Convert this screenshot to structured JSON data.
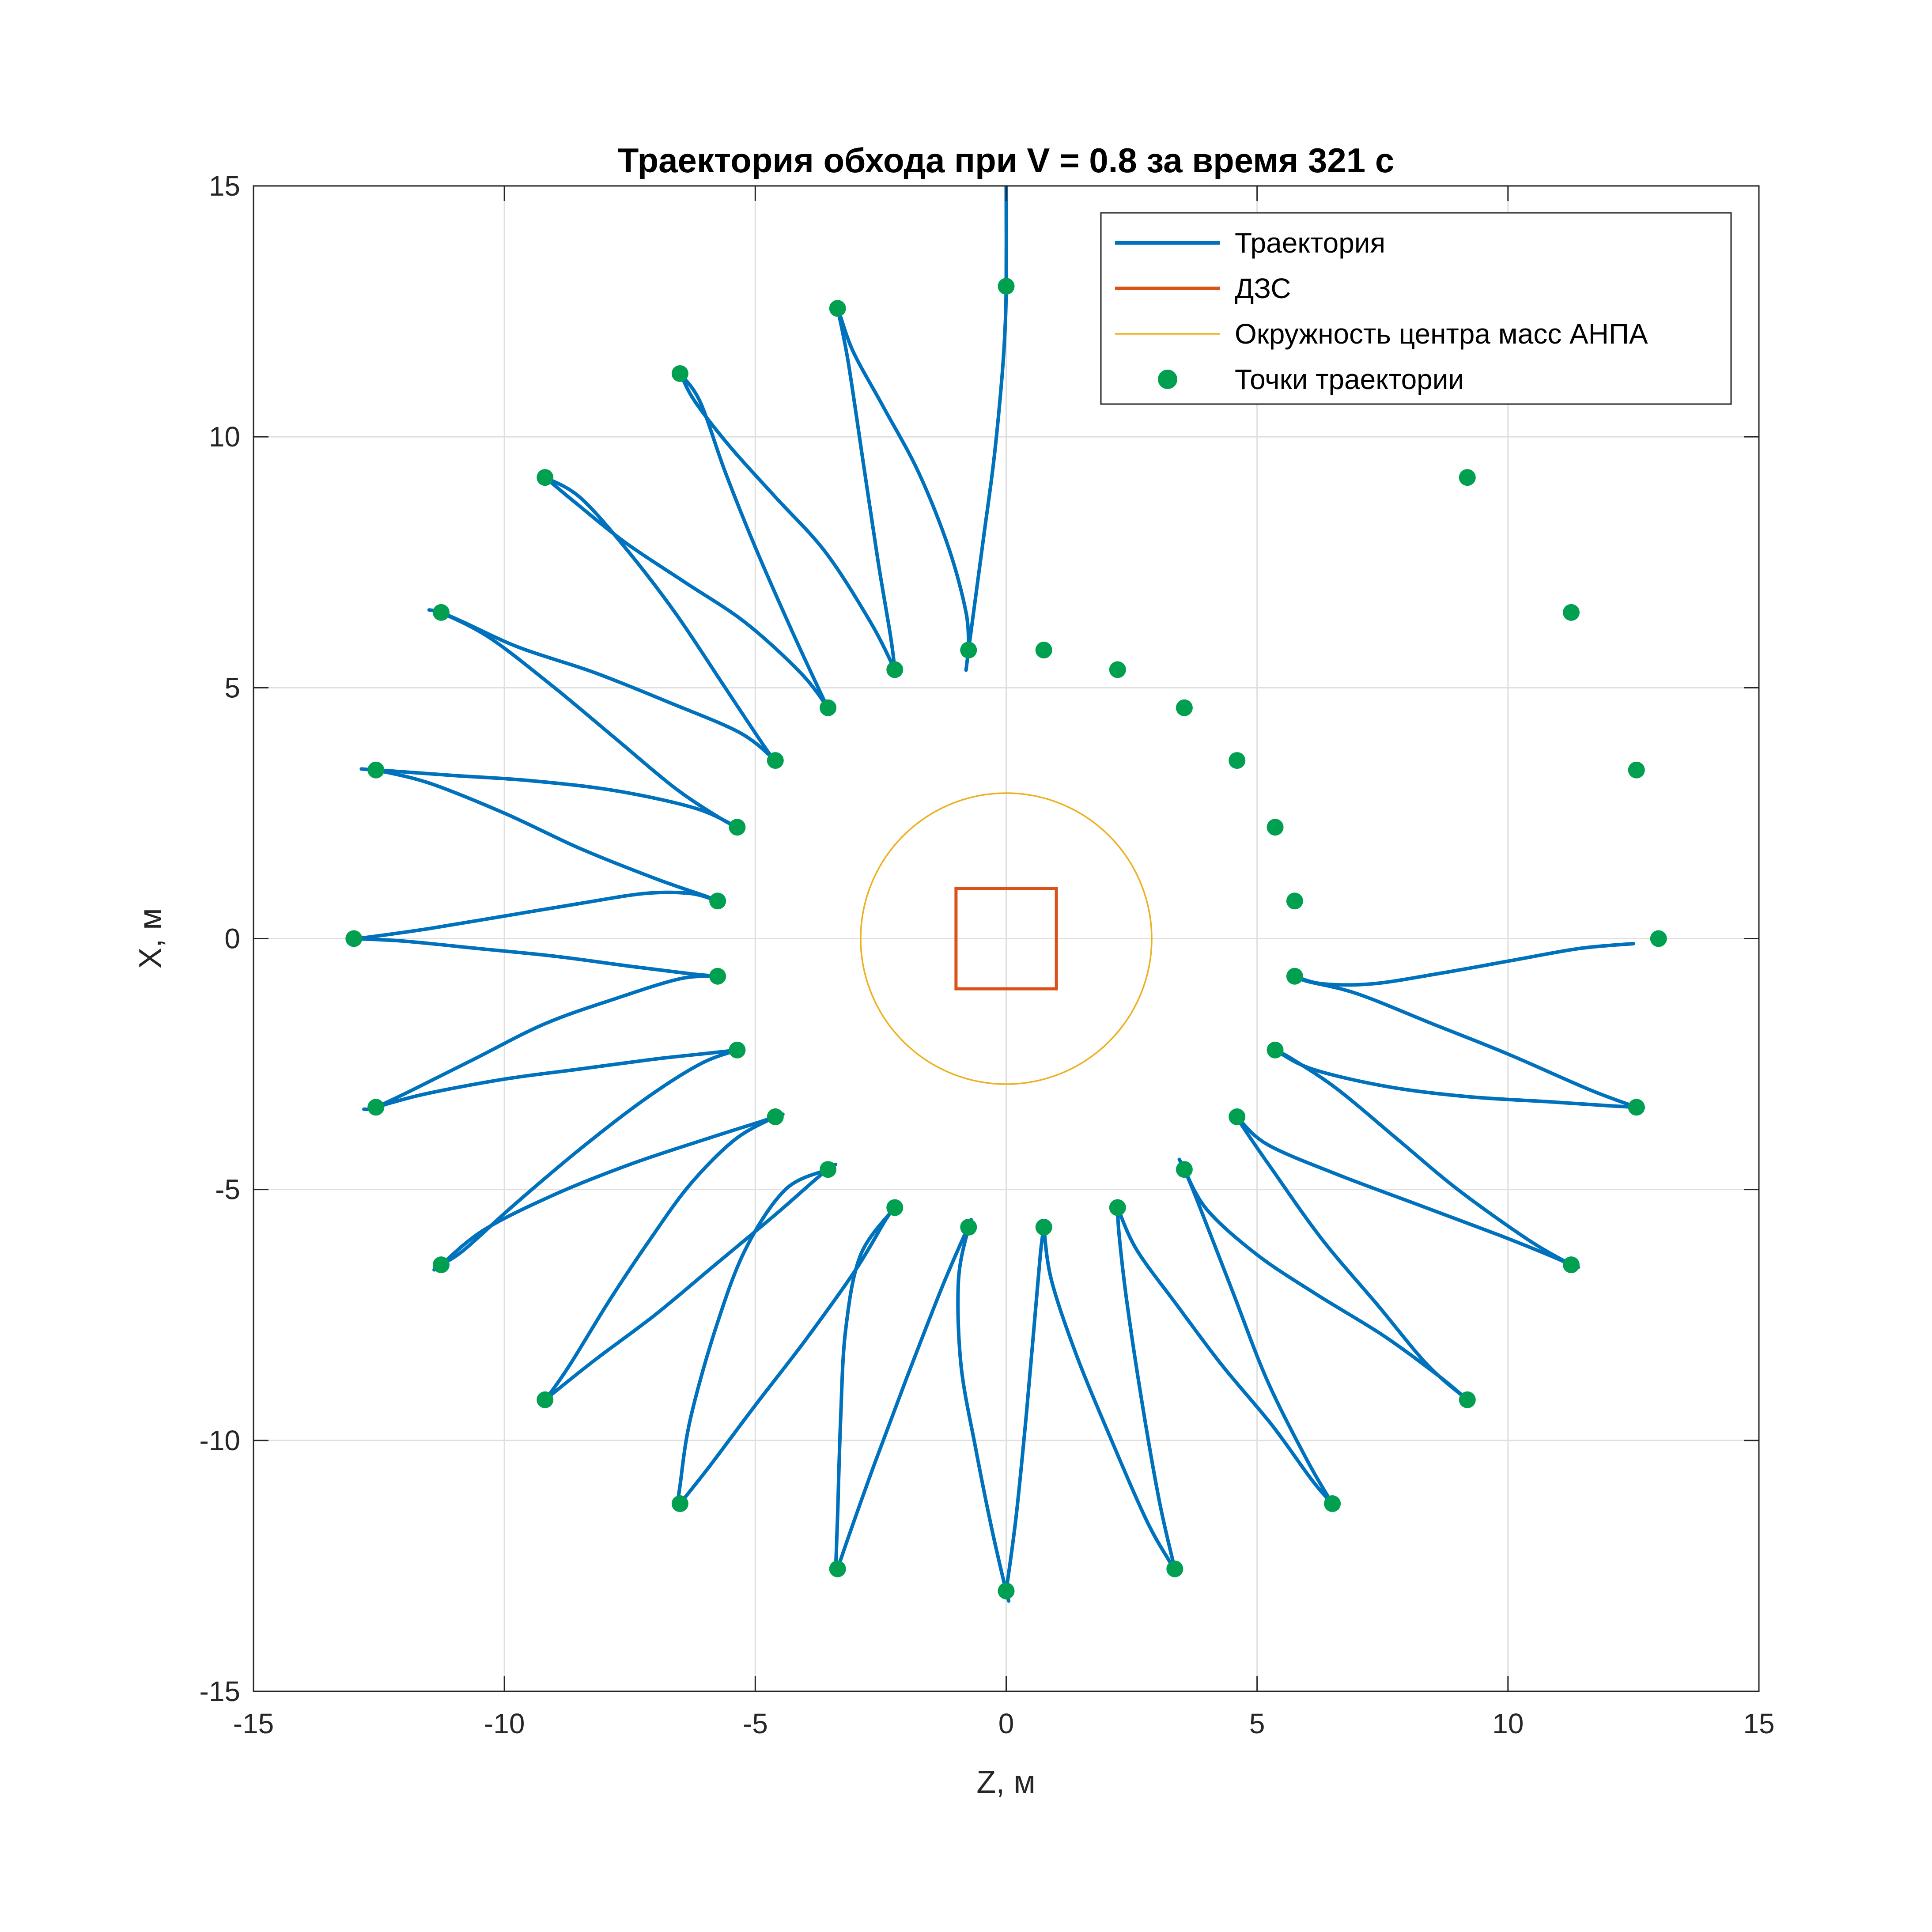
{
  "chart_data": {
    "type": "line",
    "title": "Траектория обхода при V = 0.8 за время 321 с",
    "xlabel": "Z, м",
    "ylabel": "X, м",
    "xlim": [
      -15,
      15
    ],
    "ylim": [
      -15,
      15
    ],
    "xticks": [
      -15,
      -10,
      -5,
      0,
      5,
      10,
      15
    ],
    "yticks": [
      -15,
      -10,
      -5,
      0,
      5,
      10,
      15
    ],
    "grid": true,
    "legend_position": "top-right",
    "legend": [
      {
        "label": "Траектория",
        "kind": "line",
        "color": "#0072BD"
      },
      {
        "label": "ДЗС",
        "kind": "line",
        "color": "#D95319"
      },
      {
        "label": "Окружность центра масс АНПА",
        "kind": "thin-line",
        "color": "#EDB120"
      },
      {
        "label": "Точки траектории",
        "kind": "marker",
        "color": "#00A050"
      }
    ],
    "circle": {
      "center": [
        0,
        0
      ],
      "radius": 2.9,
      "color": "#EDB120"
    },
    "square": {
      "zmin": -1,
      "zmax": 1,
      "xmin": -1,
      "xmax": 1,
      "color": "#D95319"
    },
    "points": {
      "color": "#00A050",
      "z": [
        0,
        -3.36,
        -6.5,
        -9.19,
        -11.26,
        -12.56,
        -13,
        -12.56,
        -11.26,
        -9.19,
        -6.5,
        -3.36,
        0,
        3.36,
        6.5,
        9.19,
        11.26,
        12.56,
        13,
        12.56,
        11.26,
        9.19,
        -0.75,
        -2.22,
        -3.55,
        -4.6,
        -5.36,
        -5.75,
        -5.75,
        -5.36,
        -4.6,
        -3.55,
        -2.22,
        -0.75,
        0.75,
        2.22,
        3.55,
        4.6,
        5.36,
        5.75,
        5.75,
        5.36,
        4.6,
        3.55,
        2.22,
        0.75
      ],
      "x": [
        13,
        12.56,
        11.26,
        9.19,
        6.5,
        3.36,
        0,
        -3.36,
        -6.5,
        -9.19,
        -11.26,
        -12.56,
        -13,
        -12.56,
        -11.26,
        -9.19,
        -6.5,
        -3.36,
        0,
        3.36,
        6.5,
        9.19,
        5.75,
        5.36,
        4.6,
        3.55,
        2.22,
        0.75,
        -0.75,
        -2.22,
        -3.55,
        -4.6,
        -5.36,
        -5.75,
        -5.75,
        -5.36,
        -4.6,
        -3.55,
        -2.22,
        -0.75,
        0.75,
        2.22,
        3.55,
        4.6,
        5.36,
        5.75
      ]
    },
    "series": [
      {
        "z": [
          0,
          0,
          -0.03,
          -0.1,
          -0.25,
          -0.45,
          -0.65,
          -0.75,
          -0.8
        ],
        "x": [
          15,
          13,
          12,
          11,
          9.5,
          8,
          6.5,
          5.75,
          5.35
        ],
        "color": "#0072BD"
      },
      {
        "z": [
          -0.75,
          -0.8,
          -1.15,
          -1.75,
          -2.45,
          -3.05,
          -3.36,
          -3.45
        ],
        "x": [
          5.75,
          6.5,
          7.8,
          9.3,
          10.6,
          11.7,
          12.56,
          12.6
        ]
      },
      {
        "z": [
          -3.36,
          -3.15,
          -2.85,
          -2.55,
          -2.3,
          -2.22
        ],
        "x": [
          12.56,
          11.5,
          9.5,
          7.5,
          6,
          5.36
        ]
      },
      {
        "z": [
          -2.22,
          -2.7,
          -3.6,
          -4.6,
          -5.5,
          -6.2,
          -6.5,
          -6.6
        ],
        "x": [
          5.36,
          6.3,
          7.7,
          8.8,
          9.8,
          10.7,
          11.26,
          11.35
        ]
      },
      {
        "z": [
          -6.5,
          -6.1,
          -5.6,
          -5.0,
          -4.3,
          -3.7,
          -3.55
        ],
        "x": [
          11.26,
          10.7,
          9.3,
          7.8,
          6.2,
          4.9,
          4.6
        ]
      },
      {
        "z": [
          -3.55,
          -4.1,
          -5.2,
          -6.4,
          -7.6,
          -8.6,
          -9.19,
          -9.25
        ],
        "x": [
          4.6,
          5.3,
          6.3,
          7.1,
          7.9,
          8.7,
          9.19,
          9.2
        ]
      },
      {
        "z": [
          -9.19,
          -8.5,
          -7.6,
          -6.6,
          -5.6,
          -4.8,
          -4.6
        ],
        "x": [
          9.19,
          8.8,
          7.8,
          6.5,
          5.0,
          3.8,
          3.55
        ]
      },
      {
        "z": [
          -4.6,
          -5.3,
          -6.7,
          -8.2,
          -9.7,
          -10.8,
          -11.26,
          -11.5
        ],
        "x": [
          3.55,
          4.1,
          4.7,
          5.3,
          5.8,
          6.3,
          6.5,
          6.55
        ]
      },
      {
        "z": [
          -11.26,
          -10.3,
          -9.0,
          -7.8,
          -6.6,
          -5.7,
          -5.36
        ],
        "x": [
          6.5,
          6.0,
          5.0,
          4.0,
          3.0,
          2.4,
          2.22
        ]
      },
      {
        "z": [
          -5.36,
          -6.2,
          -7.8,
          -9.5,
          -11.0,
          -12.1,
          -12.56,
          -12.85
        ],
        "x": [
          2.22,
          2.6,
          2.95,
          3.15,
          3.25,
          3.33,
          3.36,
          3.38
        ]
      },
      {
        "z": [
          -12.56,
          -11.5,
          -10.0,
          -8.5,
          -7.0,
          -6.0,
          -5.75
        ],
        "x": [
          3.36,
          3.1,
          2.5,
          1.8,
          1.2,
          0.85,
          0.75
        ]
      },
      {
        "z": [
          -5.75,
          -6.3,
          -7.2,
          -8.5,
          -10.0,
          -11.5,
          -12.7,
          -13.0
        ],
        "x": [
          0.75,
          0.9,
          0.9,
          0.7,
          0.45,
          0.2,
          0.03,
          0
        ]
      },
      {
        "z": [
          -13,
          -12.0,
          -10.5,
          -9.0,
          -7.5,
          -6.3,
          -5.75
        ],
        "x": [
          0,
          -0.05,
          -0.2,
          -0.35,
          -0.55,
          -0.7,
          -0.75
        ]
      },
      {
        "z": [
          -5.75,
          -6.5,
          -7.8,
          -9.2,
          -10.6,
          -11.8,
          -12.56,
          -12.8
        ],
        "x": [
          -0.75,
          -0.8,
          -1.2,
          -1.7,
          -2.4,
          -3.0,
          -3.36,
          -3.4
        ]
      },
      {
        "z": [
          -12.56,
          -11.6,
          -10.0,
          -8.5,
          -7.0,
          -5.8,
          -5.36
        ],
        "x": [
          -3.36,
          -3.1,
          -2.8,
          -2.6,
          -2.4,
          -2.27,
          -2.22
        ]
      },
      {
        "z": [
          -5.36,
          -6.1,
          -7.2,
          -8.5,
          -9.8,
          -10.8,
          -11.26,
          -11.4
        ],
        "x": [
          -2.22,
          -2.5,
          -3.2,
          -4.2,
          -5.3,
          -6.2,
          -6.5,
          -6.6
        ]
      },
      {
        "z": [
          -11.26,
          -10.4,
          -9.0,
          -7.5,
          -6.0,
          -4.9,
          -4.6,
          -4.45
        ],
        "x": [
          -6.5,
          -5.8,
          -5.1,
          -4.5,
          -4.0,
          -3.65,
          -3.55,
          -3.5
        ]
      },
      {
        "z": [
          -4.6,
          -5.4,
          -6.3,
          -7.1,
          -7.9,
          -8.7,
          -9.19,
          -9.3
        ],
        "x": [
          -3.55,
          -4.0,
          -4.9,
          -6.0,
          -7.2,
          -8.5,
          -9.19,
          -9.25
        ]
      },
      {
        "z": [
          -9.19,
          -8.2,
          -7.0,
          -5.8,
          -4.6,
          -3.8,
          -3.55,
          -3.4
        ],
        "x": [
          -9.19,
          -8.4,
          -7.5,
          -6.5,
          -5.5,
          -4.8,
          -4.6,
          -4.5
        ]
      },
      {
        "z": [
          -3.55,
          -4.4,
          -5.2,
          -5.8,
          -6.3,
          -6.5,
          -6.55
        ],
        "x": [
          -4.6,
          -5.0,
          -6.2,
          -7.8,
          -9.6,
          -10.9,
          -11.3
        ]
      },
      {
        "z": [
          -6.5,
          -5.9,
          -5.0,
          -4.0,
          -3.0,
          -2.4,
          -2.22,
          -2.15
        ],
        "x": [
          -11.26,
          -10.5,
          -9.3,
          -8.0,
          -6.6,
          -5.6,
          -5.36,
          -5.3
        ]
      },
      {
        "z": [
          -2.22,
          -2.9,
          -3.2,
          -3.3,
          -3.36,
          -3.4
        ],
        "x": [
          -5.36,
          -6.3,
          -7.8,
          -9.6,
          -11.5,
          -12.65
        ]
      },
      {
        "z": [
          -3.36,
          -3.1,
          -2.6,
          -2.0,
          -1.3,
          -0.85,
          -0.75,
          -0.7
        ],
        "x": [
          -12.56,
          -11.8,
          -10.4,
          -8.8,
          -7.0,
          -5.95,
          -5.75,
          -5.6
        ]
      },
      {
        "z": [
          -0.75,
          -0.95,
          -0.9,
          -0.6,
          -0.3,
          -0.05,
          0,
          0.05
        ],
        "x": [
          -5.75,
          -6.8,
          -8.5,
          -10.2,
          -11.7,
          -12.8,
          -13,
          -13.2
        ]
      },
      {
        "z": [
          0,
          0.2,
          0.4,
          0.55,
          0.68,
          0.75
        ],
        "x": [
          -13,
          -11.5,
          -9.5,
          -7.8,
          -6.3,
          -5.75
        ]
      },
      {
        "z": [
          0.75,
          0.9,
          1.4,
          2.1,
          2.8,
          3.25,
          3.36,
          3.45
        ],
        "x": [
          -5.75,
          -6.8,
          -8.3,
          -10.0,
          -11.6,
          -12.4,
          -12.56,
          -12.65
        ]
      },
      {
        "z": [
          3.36,
          3.05,
          2.7,
          2.4,
          2.25,
          2.22
        ],
        "x": [
          -12.56,
          -11.2,
          -9.2,
          -7.2,
          -5.9,
          -5.36
        ]
      },
      {
        "z": [
          2.22,
          2.6,
          3.4,
          4.3,
          5.3,
          6.1,
          6.5,
          6.6
        ],
        "x": [
          -5.36,
          -6.2,
          -7.3,
          -8.5,
          -9.7,
          -10.8,
          -11.26,
          -11.35
        ]
      },
      {
        "z": [
          6.5,
          6.0,
          5.2,
          4.5,
          3.8,
          3.55,
          3.45
        ],
        "x": [
          -11.26,
          -10.4,
          -8.8,
          -7.0,
          -5.2,
          -4.6,
          -4.4
        ]
      },
      {
        "z": [
          3.55,
          4.0,
          5.0,
          6.2,
          7.5,
          8.6,
          9.19,
          9.25
        ],
        "x": [
          -4.6,
          -5.4,
          -6.3,
          -7.1,
          -7.9,
          -8.7,
          -9.19,
          -9.25
        ]
      },
      {
        "z": [
          9.19,
          8.4,
          7.4,
          6.3,
          5.3,
          4.75,
          4.6
        ],
        "x": [
          -9.19,
          -8.5,
          -7.3,
          -6.0,
          -4.6,
          -3.8,
          -3.55
        ]
      },
      {
        "z": [
          4.6,
          5.2,
          6.6,
          8.2,
          9.8,
          10.8,
          11.26,
          11.4
        ],
        "x": [
          -3.55,
          -4.1,
          -4.7,
          -5.3,
          -5.9,
          -6.3,
          -6.5,
          -6.55
        ]
      },
      {
        "z": [
          11.26,
          10.4,
          9.0,
          7.8,
          6.6,
          5.7,
          5.36,
          5.25
        ],
        "x": [
          -6.5,
          -6.0,
          -5.0,
          -4.0,
          -3.0,
          -2.4,
          -2.22,
          -2.15
        ]
      },
      {
        "z": [
          5.36,
          6.1,
          7.6,
          9.2,
          10.8,
          12.0,
          12.56,
          12.7
        ],
        "x": [
          -2.22,
          -2.6,
          -2.95,
          -3.15,
          -3.25,
          -3.33,
          -3.36,
          -3.37
        ]
      },
      {
        "z": [
          12.56,
          11.6,
          10.0,
          8.5,
          7.0,
          6.0,
          5.75
        ],
        "x": [
          -3.36,
          -3.0,
          -2.3,
          -1.7,
          -1.1,
          -0.85,
          -0.75
        ]
      },
      {
        "z": [
          5.75,
          6.3,
          7.3,
          8.6,
          10.0,
          11.4,
          12.5
        ],
        "x": [
          -0.75,
          -0.9,
          -0.9,
          -0.7,
          -0.45,
          -0.2,
          -0.1
        ]
      }
    ]
  }
}
